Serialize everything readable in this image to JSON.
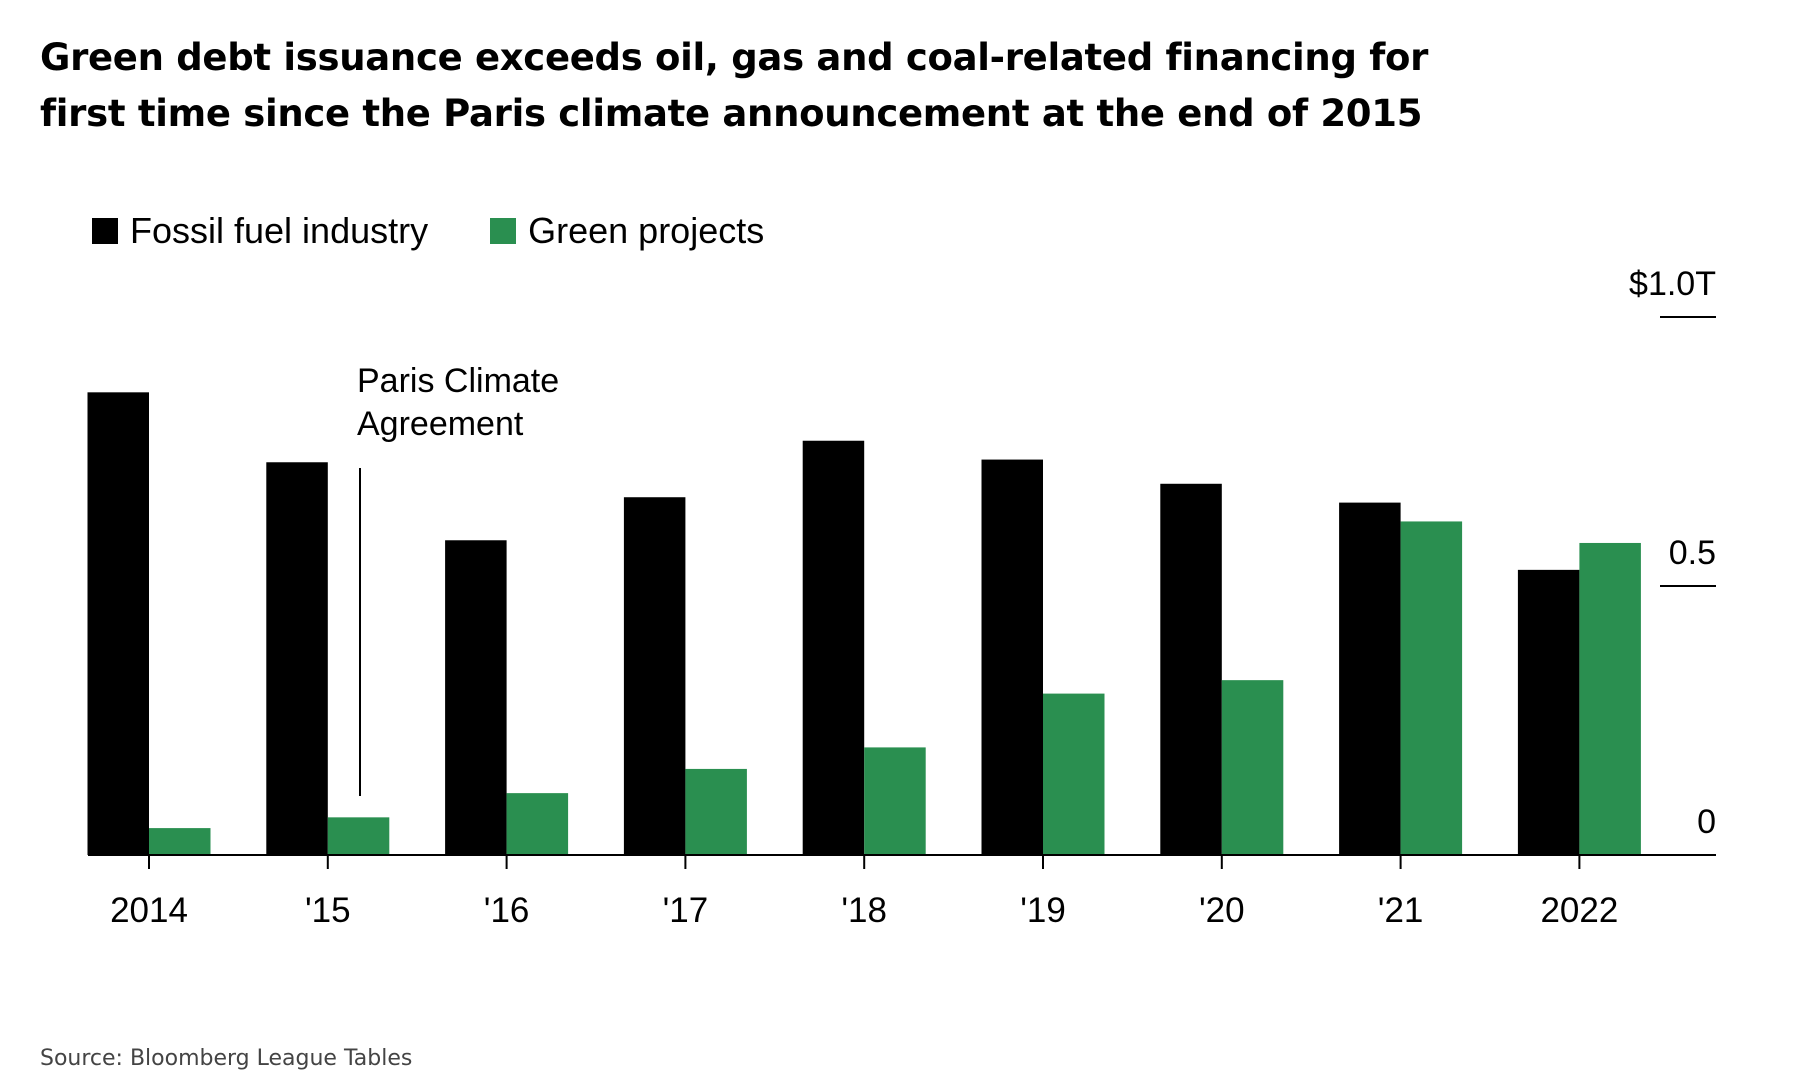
{
  "title_lines": [
    "Green debt issuance exceeds oil, gas and coal-related financing for",
    "first time since the Paris climate announcement at the end of 2015"
  ],
  "source": "Source: Bloomberg League Tables",
  "colors": {
    "fossil": "#000000",
    "green": "#2a8f50"
  },
  "chart_data": {
    "type": "bar",
    "title": "Green debt issuance exceeds oil, gas and coal-related financing for first time since the Paris climate announcement at the end of 2015",
    "categories": [
      "2014",
      "'15",
      "'16",
      "'17",
      "'18",
      "'19",
      "'20",
      "'21",
      "2022"
    ],
    "series": [
      {
        "name": "Fossil fuel industry",
        "values": [
          0.86,
          0.73,
          0.585,
          0.665,
          0.77,
          0.735,
          0.69,
          0.655,
          0.53
        ]
      },
      {
        "name": "Green projects",
        "values": [
          0.05,
          0.07,
          0.115,
          0.16,
          0.2,
          0.3,
          0.325,
          0.62,
          0.58
        ]
      }
    ],
    "unit": "trillion USD",
    "ylim": [
      0,
      1.0
    ],
    "yticks": [
      {
        "value": 0,
        "label": "0"
      },
      {
        "value": 0.5,
        "label": "0.5"
      },
      {
        "value": 1.0,
        "label": "$1.0T"
      }
    ],
    "y_axis_side": "right",
    "grid": false,
    "legend_placement": "top-left",
    "annotation": {
      "lines": [
        "Paris Climate",
        "Agreement"
      ],
      "at": "end of 2015"
    }
  }
}
